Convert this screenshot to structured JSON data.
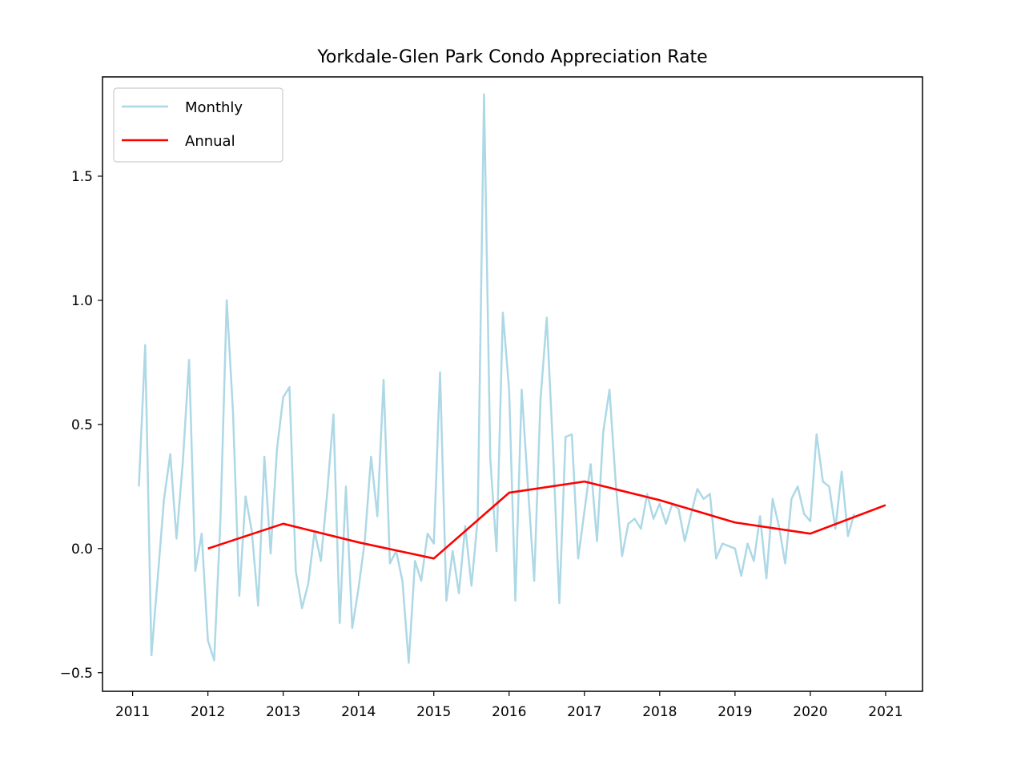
{
  "chart_data": {
    "type": "line",
    "title": "Yorkdale-Glen Park Condo Appreciation Rate",
    "xlabel": "",
    "ylabel": "",
    "xlim": [
      2010.6,
      2021.49
    ],
    "ylim": [
      -0.575,
      1.9
    ],
    "x_ticks": [
      2011,
      2012,
      2013,
      2014,
      2015,
      2016,
      2017,
      2018,
      2019,
      2020,
      2021
    ],
    "x_tick_labels": [
      "2011",
      "2012",
      "2013",
      "2014",
      "2015",
      "2016",
      "2017",
      "2018",
      "2019",
      "2020",
      "2021"
    ],
    "y_ticks": [
      -0.5,
      0.0,
      0.5,
      1.0,
      1.5
    ],
    "y_tick_labels": [
      "−0.5",
      "0.0",
      "0.5",
      "1.0",
      "1.5"
    ],
    "grid": false,
    "legend": {
      "position": "top-left",
      "entries": [
        "Monthly",
        "Annual"
      ]
    },
    "series": [
      {
        "name": "Monthly",
        "color": "#add8e6",
        "x": [
          2011.083,
          2011.167,
          2011.25,
          2011.333,
          2011.417,
          2011.5,
          2011.583,
          2011.667,
          2011.75,
          2011.833,
          2011.917,
          2012.0,
          2012.083,
          2012.167,
          2012.25,
          2012.333,
          2012.417,
          2012.5,
          2012.583,
          2012.667,
          2012.75,
          2012.833,
          2012.917,
          2013.0,
          2013.083,
          2013.167,
          2013.25,
          2013.333,
          2013.417,
          2013.5,
          2013.583,
          2013.667,
          2013.75,
          2013.833,
          2013.917,
          2014.0,
          2014.083,
          2014.167,
          2014.25,
          2014.333,
          2014.417,
          2014.5,
          2014.583,
          2014.667,
          2014.75,
          2014.833,
          2014.917,
          2015.0,
          2015.083,
          2015.167,
          2015.25,
          2015.333,
          2015.417,
          2015.5,
          2015.583,
          2015.667,
          2015.75,
          2015.833,
          2015.917,
          2016.0,
          2016.083,
          2016.167,
          2016.25,
          2016.333,
          2016.417,
          2016.5,
          2016.583,
          2016.667,
          2016.75,
          2016.833,
          2016.917,
          2017.0,
          2017.083,
          2017.167,
          2017.25,
          2017.333,
          2017.417,
          2017.5,
          2017.583,
          2017.667,
          2017.75,
          2017.833,
          2017.917,
          2018.0,
          2018.083,
          2018.167,
          2018.25,
          2018.333,
          2018.417,
          2018.5,
          2018.583,
          2018.667,
          2018.75,
          2018.833,
          2018.917,
          2019.0,
          2019.083,
          2019.167,
          2019.25,
          2019.333,
          2019.417,
          2019.5,
          2019.583,
          2019.667,
          2019.75,
          2019.833,
          2019.917,
          2020.0,
          2020.083,
          2020.167,
          2020.25,
          2020.333,
          2020.417,
          2020.5,
          2020.583
        ],
        "values": [
          0.25,
          0.82,
          -0.43,
          -0.12,
          0.2,
          0.38,
          0.04,
          0.35,
          0.76,
          -0.09,
          0.06,
          -0.37,
          -0.45,
          0.12,
          1.0,
          0.55,
          -0.19,
          0.21,
          0.07,
          -0.23,
          0.37,
          -0.02,
          0.4,
          0.61,
          0.65,
          -0.09,
          -0.24,
          -0.14,
          0.07,
          -0.05,
          0.22,
          0.54,
          -0.3,
          0.25,
          -0.32,
          -0.16,
          0.03,
          0.37,
          0.13,
          0.68,
          -0.06,
          -0.01,
          -0.13,
          -0.46,
          -0.05,
          -0.13,
          0.06,
          0.02,
          0.71,
          -0.21,
          -0.01,
          -0.18,
          0.09,
          -0.15,
          0.12,
          1.83,
          0.36,
          -0.01,
          0.95,
          0.64,
          -0.21,
          0.64,
          0.25,
          -0.13,
          0.6,
          0.93,
          0.4,
          -0.22,
          0.45,
          0.46,
          -0.04,
          0.15,
          0.34,
          0.03,
          0.47,
          0.64,
          0.26,
          -0.03,
          0.1,
          0.12,
          0.08,
          0.22,
          0.12,
          0.18,
          0.1,
          0.18,
          0.16,
          0.03,
          0.14,
          0.24,
          0.2,
          0.22,
          -0.04,
          0.02,
          0.01,
          0.0,
          -0.11,
          0.02,
          -0.05,
          0.13,
          -0.12,
          0.2,
          0.09,
          -0.06,
          0.2,
          0.25,
          0.14,
          0.11,
          0.46,
          0.27,
          0.25,
          0.08,
          0.31,
          0.05,
          0.14
        ]
      },
      {
        "name": "Annual",
        "color": "#ff0000",
        "x": [
          2012,
          2013,
          2014,
          2015,
          2016,
          2017,
          2018,
          2019,
          2020,
          2021
        ],
        "values": [
          0.0,
          0.1,
          0.025,
          -0.04,
          0.225,
          0.27,
          0.195,
          0.105,
          0.06,
          0.175
        ]
      }
    ]
  }
}
